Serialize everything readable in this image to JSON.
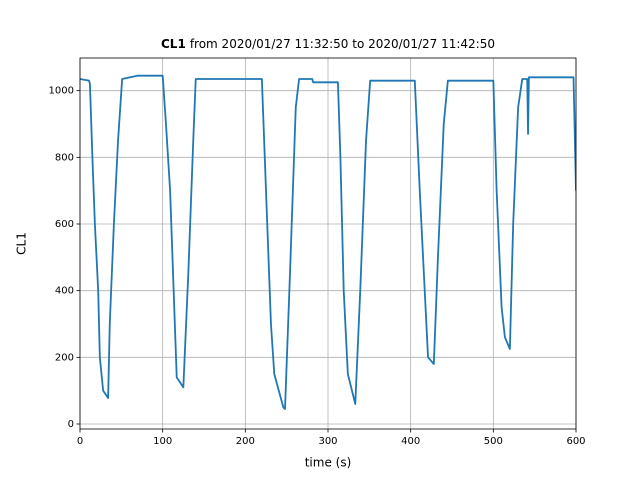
{
  "chart_data": {
    "type": "line",
    "title_parts": [
      {
        "text": "CL1",
        "bold": true
      },
      {
        "text": "from 2020/01/27 11:32:50 to 2020/01/27 11:42:50",
        "bold": false
      }
    ],
    "x_label": "time (s)",
    "y_label": "CL1",
    "x": [
      0,
      11,
      12,
      15,
      18,
      22,
      24,
      28,
      34,
      36,
      41,
      46,
      51,
      70,
      100,
      104,
      109,
      114,
      117,
      125,
      131,
      137,
      140,
      220,
      225,
      231,
      235,
      246,
      248,
      254,
      261,
      265,
      281,
      282,
      312,
      315,
      319,
      324,
      333,
      339,
      346,
      351,
      405,
      411,
      417,
      421,
      428,
      433,
      440,
      445,
      500,
      504,
      510,
      514,
      520,
      524,
      530,
      535,
      541,
      542,
      543,
      597,
      600
    ],
    "series": [
      {
        "name": "CL1",
        "color": "#1f77b4",
        "values": [
          1035,
          1030,
          1020,
          800,
          600,
          400,
          200,
          100,
          78,
          300,
          600,
          850,
          1035,
          1045,
          1045,
          900,
          700,
          350,
          140,
          110,
          450,
          850,
          1035,
          1035,
          700,
          300,
          150,
          50,
          45,
          450,
          950,
          1035,
          1035,
          1025,
          1025,
          800,
          400,
          150,
          60,
          400,
          850,
          1030,
          1030,
          700,
          400,
          200,
          180,
          500,
          900,
          1030,
          1030,
          700,
          350,
          260,
          225,
          600,
          950,
          1035,
          1035,
          870,
          1040,
          1040,
          700
        ]
      }
    ],
    "xlim": [
      0,
      600
    ],
    "ylim": [
      -15,
      1098
    ],
    "xticks": [
      0,
      100,
      200,
      300,
      400,
      500,
      600
    ],
    "yticks": [
      0,
      200,
      400,
      600,
      800,
      1000
    ],
    "grid": true
  }
}
